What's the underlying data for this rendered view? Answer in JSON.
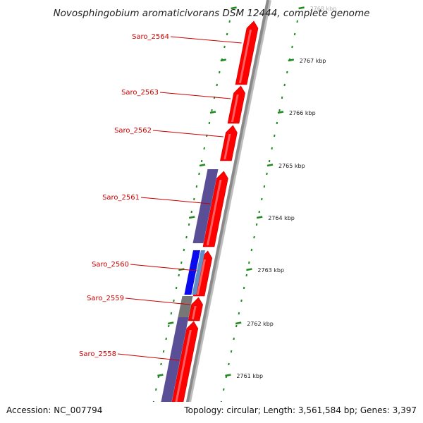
{
  "title": "Novosphingobium aromaticivorans DSM 12444, complete genome",
  "footer": {
    "accession": "Accession: NC_007794",
    "info": "Topology: circular; Length: 3,561,584 bp; Genes: 3,397"
  },
  "colors": {
    "forward_gene": "#ff0000",
    "forward_gene_dark": "#c80000",
    "cds_purple": "#5a4f96",
    "cds_blue": "#0a0aee",
    "cds_light_blue": "#5f8fc8",
    "cds_gray": "#777777",
    "backbone": "#8a8a8a",
    "tick": "#1f8a1f",
    "label": "#cc0000"
  },
  "genes": [
    {
      "name": "Saro_2564"
    },
    {
      "name": "Saro_2563"
    },
    {
      "name": "Saro_2562"
    },
    {
      "name": "Saro_2561"
    },
    {
      "name": "Saro_2560"
    },
    {
      "name": "Saro_2559"
    },
    {
      "name": "Saro_2558"
    }
  ],
  "kbp_ticks": [
    {
      "label": "2768 kbp"
    },
    {
      "label": "2767 kbp"
    },
    {
      "label": "2766 kbp"
    },
    {
      "label": "2765 kbp"
    },
    {
      "label": "2764 kbp"
    },
    {
      "label": "2763 kbp"
    },
    {
      "label": "2762 kbp"
    },
    {
      "label": "2761 kbp"
    }
  ]
}
